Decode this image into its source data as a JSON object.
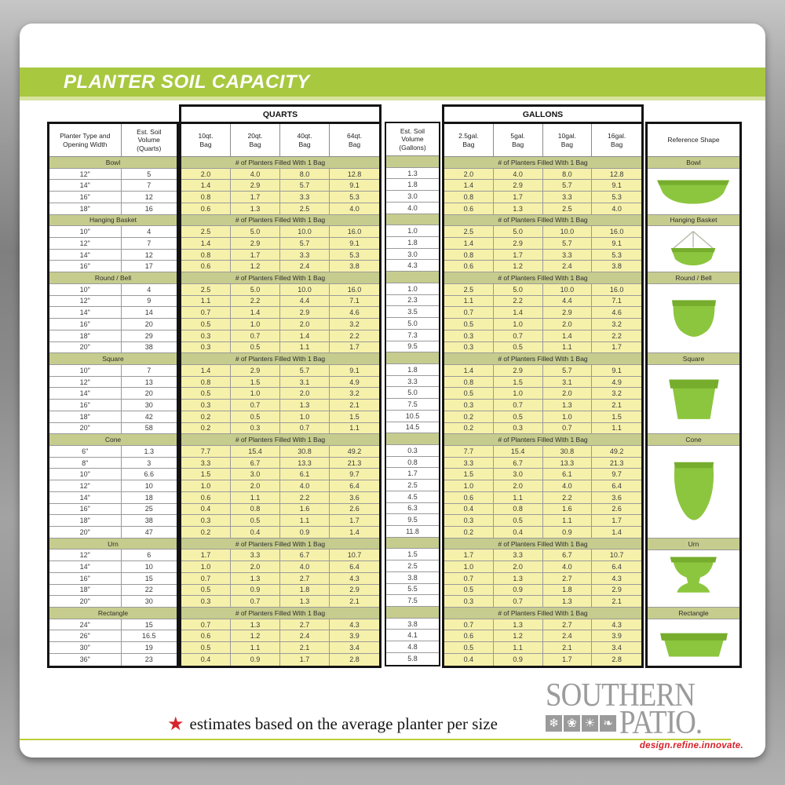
{
  "title": "PLANTER SOIL CAPACITY",
  "colors": {
    "accent_green": "#a8c840",
    "band_green": "#c6cc8d",
    "cell_yellow": "#f6f1aa",
    "planter_green": "#8cc63e",
    "logo_gray": "#9b9b9b",
    "tagline_red": "#d62028",
    "star_red": "#d8232a"
  },
  "table": {
    "planter_header": "Planter Type and\nOpening Width",
    "est_qt_header": "Est. Soil\nVolume\n(Quarts)",
    "est_gal_header": "Est. Soil\nVolume\n(Gallons)",
    "quarts_group": "QUARTS",
    "gallons_group": "GALLONS",
    "quart_bags": [
      "10qt.\nBag",
      "20qt.\nBag",
      "40qt.\nBag",
      "64qt.\nBag"
    ],
    "gallon_bags": [
      "2.5gal.\nBag",
      "5gal.\nBag",
      "10gal.\nBag",
      "16gal.\nBag"
    ],
    "fill_band_label": "# of Planters Filled With 1 Bag",
    "reference_header": "Reference Shape",
    "sections": [
      {
        "name": "Bowl",
        "shape": "bowl",
        "rows": [
          {
            "size": "12\"",
            "quarts": "5",
            "gallons": "1.3",
            "fills": [
              "2.0",
              "4.0",
              "8.0",
              "12.8"
            ]
          },
          {
            "size": "14\"",
            "quarts": "7",
            "gallons": "1.8",
            "fills": [
              "1.4",
              "2.9",
              "5.7",
              "9.1"
            ]
          },
          {
            "size": "16\"",
            "quarts": "12",
            "gallons": "3.0",
            "fills": [
              "0.8",
              "1.7",
              "3.3",
              "5.3"
            ]
          },
          {
            "size": "18\"",
            "quarts": "16",
            "gallons": "4.0",
            "fills": [
              "0.6",
              "1.3",
              "2.5",
              "4.0"
            ]
          }
        ]
      },
      {
        "name": "Hanging Basket",
        "shape": "hanging-basket",
        "rows": [
          {
            "size": "10\"",
            "quarts": "4",
            "gallons": "1.0",
            "fills": [
              "2.5",
              "5.0",
              "10.0",
              "16.0"
            ]
          },
          {
            "size": "12\"",
            "quarts": "7",
            "gallons": "1.8",
            "fills": [
              "1.4",
              "2.9",
              "5.7",
              "9.1"
            ]
          },
          {
            "size": "14\"",
            "quarts": "12",
            "gallons": "3.0",
            "fills": [
              "0.8",
              "1.7",
              "3.3",
              "5.3"
            ]
          },
          {
            "size": "16\"",
            "quarts": "17",
            "gallons": "4.3",
            "fills": [
              "0.6",
              "1.2",
              "2.4",
              "3.8"
            ]
          }
        ]
      },
      {
        "name": "Round / Bell",
        "shape": "round-bell",
        "rows": [
          {
            "size": "10\"",
            "quarts": "4",
            "gallons": "1.0",
            "fills": [
              "2.5",
              "5.0",
              "10.0",
              "16.0"
            ]
          },
          {
            "size": "12\"",
            "quarts": "9",
            "gallons": "2.3",
            "fills": [
              "1.1",
              "2.2",
              "4.4",
              "7.1"
            ]
          },
          {
            "size": "14\"",
            "quarts": "14",
            "gallons": "3.5",
            "fills": [
              "0.7",
              "1.4",
              "2.9",
              "4.6"
            ]
          },
          {
            "size": "16\"",
            "quarts": "20",
            "gallons": "5.0",
            "fills": [
              "0.5",
              "1.0",
              "2.0",
              "3.2"
            ]
          },
          {
            "size": "18\"",
            "quarts": "29",
            "gallons": "7.3",
            "fills": [
              "0.3",
              "0.7",
              "1.4",
              "2.2"
            ]
          },
          {
            "size": "20\"",
            "quarts": "38",
            "gallons": "9.5",
            "fills": [
              "0.3",
              "0.5",
              "1.1",
              "1.7"
            ]
          }
        ]
      },
      {
        "name": "Square",
        "shape": "square",
        "rows": [
          {
            "size": "10\"",
            "quarts": "7",
            "gallons": "1.8",
            "fills": [
              "1.4",
              "2.9",
              "5.7",
              "9.1"
            ]
          },
          {
            "size": "12\"",
            "quarts": "13",
            "gallons": "3.3",
            "fills": [
              "0.8",
              "1.5",
              "3.1",
              "4.9"
            ]
          },
          {
            "size": "14\"",
            "quarts": "20",
            "gallons": "5.0",
            "fills": [
              "0.5",
              "1.0",
              "2.0",
              "3.2"
            ]
          },
          {
            "size": "16\"",
            "quarts": "30",
            "gallons": "7.5",
            "fills": [
              "0.3",
              "0.7",
              "1.3",
              "2.1"
            ]
          },
          {
            "size": "18\"",
            "quarts": "42",
            "gallons": "10.5",
            "fills": [
              "0.2",
              "0.5",
              "1.0",
              "1.5"
            ]
          },
          {
            "size": "20\"",
            "quarts": "58",
            "gallons": "14.5",
            "fills": [
              "0.2",
              "0.3",
              "0.7",
              "1.1"
            ]
          }
        ]
      },
      {
        "name": "Cone",
        "shape": "cone",
        "rows": [
          {
            "size": "6\"",
            "quarts": "1.3",
            "gallons": "0.3",
            "fills": [
              "7.7",
              "15.4",
              "30.8",
              "49.2"
            ]
          },
          {
            "size": "8\"",
            "quarts": "3",
            "gallons": "0.8",
            "fills": [
              "3.3",
              "6.7",
              "13.3",
              "21.3"
            ]
          },
          {
            "size": "10\"",
            "quarts": "6.6",
            "gallons": "1.7",
            "fills": [
              "1.5",
              "3.0",
              "6.1",
              "9.7"
            ]
          },
          {
            "size": "12\"",
            "quarts": "10",
            "gallons": "2.5",
            "fills": [
              "1.0",
              "2.0",
              "4.0",
              "6.4"
            ]
          },
          {
            "size": "14\"",
            "quarts": "18",
            "gallons": "4.5",
            "fills": [
              "0.6",
              "1.1",
              "2.2",
              "3.6"
            ]
          },
          {
            "size": "16\"",
            "quarts": "25",
            "gallons": "6.3",
            "fills": [
              "0.4",
              "0.8",
              "1.6",
              "2.6"
            ]
          },
          {
            "size": "18\"",
            "quarts": "38",
            "gallons": "9.5",
            "fills": [
              "0.3",
              "0.5",
              "1.1",
              "1.7"
            ]
          },
          {
            "size": "20\"",
            "quarts": "47",
            "gallons": "11.8",
            "fills": [
              "0.2",
              "0.4",
              "0.9",
              "1.4"
            ]
          }
        ]
      },
      {
        "name": "Urn",
        "shape": "urn",
        "rows": [
          {
            "size": "12\"",
            "quarts": "6",
            "gallons": "1.5",
            "fills": [
              "1.7",
              "3.3",
              "6.7",
              "10.7"
            ]
          },
          {
            "size": "14\"",
            "quarts": "10",
            "gallons": "2.5",
            "fills": [
              "1.0",
              "2.0",
              "4.0",
              "6.4"
            ]
          },
          {
            "size": "16\"",
            "quarts": "15",
            "gallons": "3.8",
            "fills": [
              "0.7",
              "1.3",
              "2.7",
              "4.3"
            ]
          },
          {
            "size": "18\"",
            "quarts": "22",
            "gallons": "5.5",
            "fills": [
              "0.5",
              "0.9",
              "1.8",
              "2.9"
            ]
          },
          {
            "size": "20\"",
            "quarts": "30",
            "gallons": "7.5",
            "fills": [
              "0.3",
              "0.7",
              "1.3",
              "2.1"
            ]
          }
        ]
      },
      {
        "name": "Rectangle",
        "shape": "rectangle",
        "rows": [
          {
            "size": "24\"",
            "quarts": "15",
            "gallons": "3.8",
            "fills": [
              "0.7",
              "1.3",
              "2.7",
              "4.3"
            ]
          },
          {
            "size": "26\"",
            "quarts": "16.5",
            "gallons": "4.1",
            "fills": [
              "0.6",
              "1.2",
              "2.4",
              "3.9"
            ]
          },
          {
            "size": "30\"",
            "quarts": "19",
            "gallons": "4.8",
            "fills": [
              "0.5",
              "1.1",
              "2.1",
              "3.4"
            ]
          },
          {
            "size": "36\"",
            "quarts": "23",
            "gallons": "5.8",
            "fills": [
              "0.4",
              "0.9",
              "1.7",
              "2.8"
            ]
          }
        ]
      }
    ]
  },
  "footer": {
    "star_icon": "★",
    "note": "estimates based on the average planter per size",
    "logo_line1": "SOUTHERN",
    "logo_line2": "PATIO.",
    "tagline": "design.refine.innovate.",
    "logo_icons": [
      {
        "name": "snowflake-icon",
        "glyph": "❄"
      },
      {
        "name": "flower-icon",
        "glyph": "❀"
      },
      {
        "name": "sun-icon",
        "glyph": "☀"
      },
      {
        "name": "leaf-icon",
        "glyph": "❧"
      }
    ]
  }
}
